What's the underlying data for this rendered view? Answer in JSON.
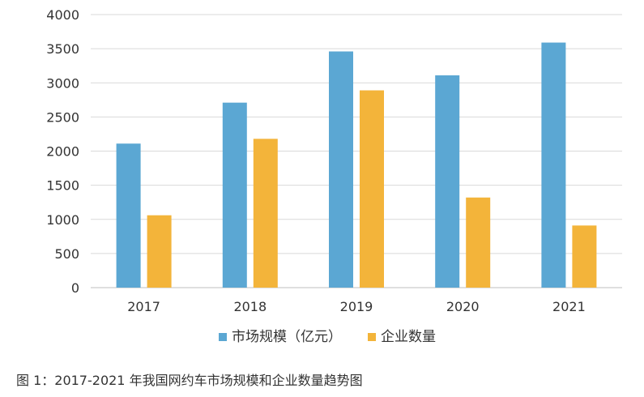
{
  "chart_data": {
    "type": "bar",
    "categories": [
      "2017",
      "2018",
      "2019",
      "2020",
      "2021"
    ],
    "series": [
      {
        "name": "市场规模（亿元）",
        "values": [
          2110,
          2710,
          3460,
          3110,
          3590
        ],
        "color": "#5ba7d3"
      },
      {
        "name": "企业数量",
        "values": [
          1060,
          2180,
          2890,
          1320,
          910
        ],
        "color": "#f3b43a"
      }
    ],
    "ylim": [
      0,
      4000
    ],
    "yticks": [
      0,
      500,
      1000,
      1500,
      2000,
      2500,
      3000,
      3500,
      4000
    ],
    "grid": true,
    "legend_position": "bottom",
    "caption": "图 1：2017-2021 年我国网约车市场规模和企业数量趋势图"
  }
}
